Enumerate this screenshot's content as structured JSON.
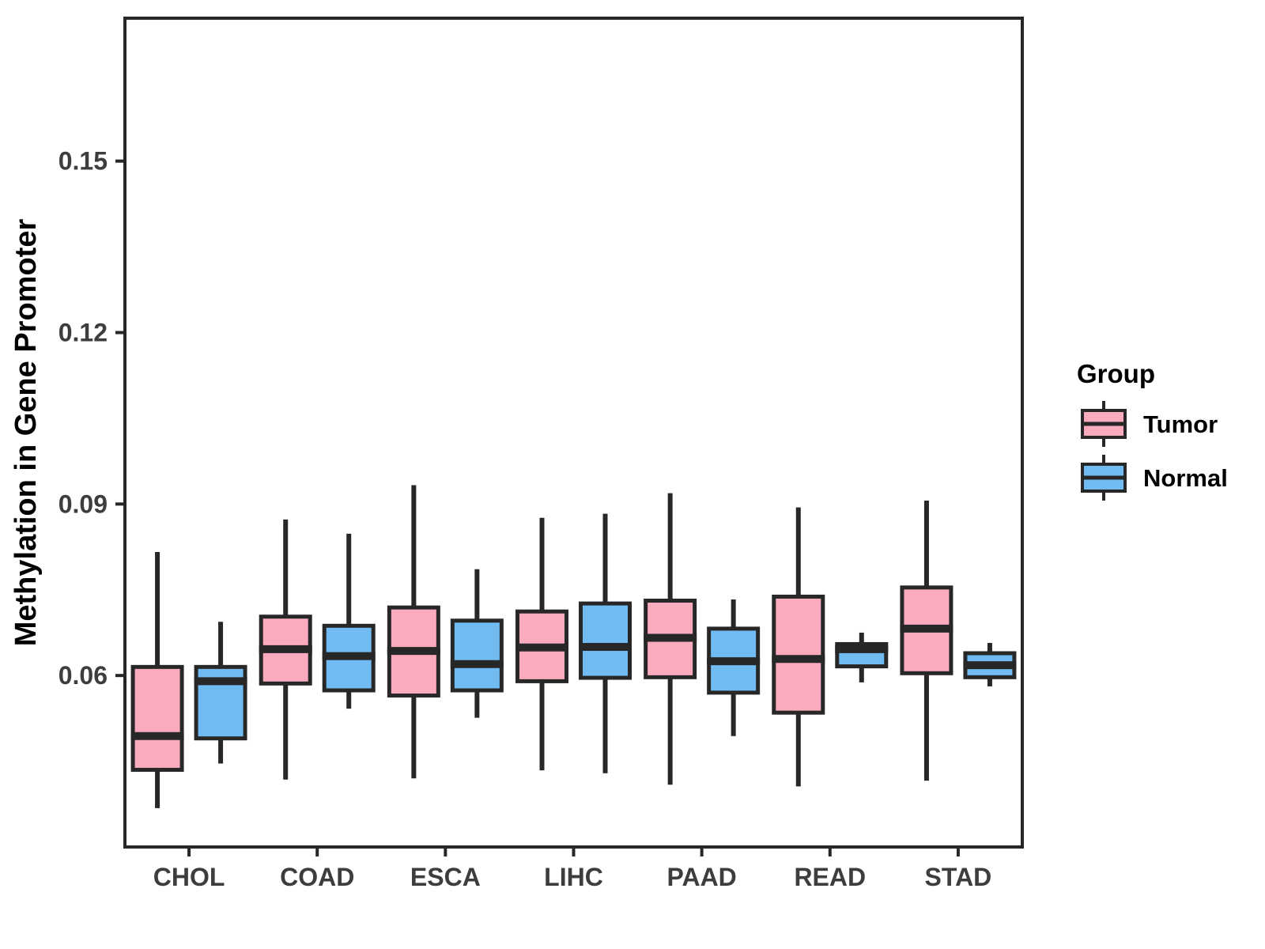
{
  "figure": {
    "y_axis": {
      "title": "Methylation in Gene Promoter",
      "tick_labels": [
        "0.06",
        "0.09",
        "0.12",
        "0.15"
      ],
      "tick_values": [
        0.06,
        0.09,
        0.12,
        0.15
      ]
    },
    "x_axis": {
      "categories": [
        "CHOL",
        "COAD",
        "ESCA",
        "LIHC",
        "PAAD",
        "READ",
        "STAD"
      ]
    },
    "legend": {
      "title": "Group",
      "entries": [
        {
          "label": "Tumor",
          "color": "#FAACBE"
        },
        {
          "label": "Normal",
          "color": "#70BCF2"
        }
      ]
    }
  },
  "chart_data": {
    "type": "boxplot",
    "title": "",
    "xlabel": "",
    "ylabel": "Methylation in Gene Promoter",
    "ylim": [
      0.03,
      0.175
    ],
    "yticks": [
      0.06,
      0.09,
      0.12,
      0.15
    ],
    "grid": false,
    "legend_position": "right",
    "categories": [
      "CHOL",
      "COAD",
      "ESCA",
      "LIHC",
      "PAAD",
      "READ",
      "STAD"
    ],
    "groups": [
      "Tumor",
      "Normal"
    ],
    "colors": {
      "tumor_fill": "#FAACBE",
      "normal_fill": "#70BCF2",
      "line": "#272727",
      "tick_text": "#3D3D3D",
      "axis_title_text": "#000000"
    },
    "series": [
      {
        "name": "Tumor",
        "color": "#FAACBE",
        "boxes": [
          {
            "category": "CHOL",
            "whisker_low": 0.0368,
            "q1": 0.0435,
            "median": 0.0494,
            "q3": 0.0615,
            "whisker_high": 0.0816
          },
          {
            "category": "COAD",
            "whisker_low": 0.0418,
            "q1": 0.0586,
            "median": 0.0646,
            "q3": 0.0703,
            "whisker_high": 0.0873
          },
          {
            "category": "ESCA",
            "whisker_low": 0.042,
            "q1": 0.0565,
            "median": 0.0643,
            "q3": 0.0719,
            "whisker_high": 0.0933
          },
          {
            "category": "LIHC",
            "whisker_low": 0.0434,
            "q1": 0.059,
            "median": 0.0649,
            "q3": 0.0712,
            "whisker_high": 0.0876
          },
          {
            "category": "PAAD",
            "whisker_low": 0.0409,
            "q1": 0.0597,
            "median": 0.0666,
            "q3": 0.0731,
            "whisker_high": 0.0919
          },
          {
            "category": "READ",
            "whisker_low": 0.0406,
            "q1": 0.0535,
            "median": 0.0629,
            "q3": 0.0738,
            "whisker_high": 0.0894
          },
          {
            "category": "STAD",
            "whisker_low": 0.0416,
            "q1": 0.0604,
            "median": 0.0682,
            "q3": 0.0754,
            "whisker_high": 0.0906
          }
        ]
      },
      {
        "name": "Normal",
        "color": "#70BCF2",
        "boxes": [
          {
            "category": "CHOL",
            "whisker_low": 0.0446,
            "q1": 0.049,
            "median": 0.059,
            "q3": 0.0615,
            "whisker_high": 0.0694
          },
          {
            "category": "COAD",
            "whisker_low": 0.0542,
            "q1": 0.0574,
            "median": 0.0634,
            "q3": 0.0687,
            "whisker_high": 0.0848
          },
          {
            "category": "ESCA",
            "whisker_low": 0.0526,
            "q1": 0.0574,
            "median": 0.062,
            "q3": 0.0696,
            "whisker_high": 0.0786
          },
          {
            "category": "LIHC",
            "whisker_low": 0.0429,
            "q1": 0.0596,
            "median": 0.065,
            "q3": 0.0726,
            "whisker_high": 0.0883
          },
          {
            "category": "PAAD",
            "whisker_low": 0.0494,
            "q1": 0.057,
            "median": 0.0625,
            "q3": 0.0682,
            "whisker_high": 0.0733
          },
          {
            "category": "READ",
            "whisker_low": 0.0588,
            "q1": 0.0616,
            "median": 0.0646,
            "q3": 0.0655,
            "whisker_high": 0.0675
          },
          {
            "category": "STAD",
            "whisker_low": 0.0581,
            "q1": 0.0597,
            "median": 0.0618,
            "q3": 0.0639,
            "whisker_high": 0.0657
          }
        ]
      }
    ]
  }
}
